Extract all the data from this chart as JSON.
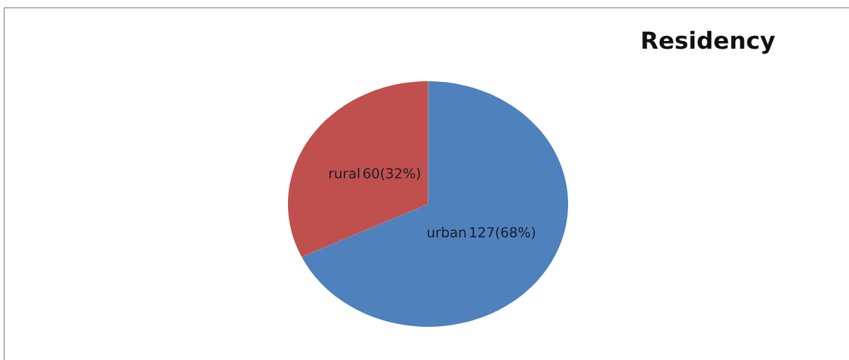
{
  "chart_data": {
    "type": "pie",
    "title": "Residency",
    "categories": [
      "urban",
      "rural"
    ],
    "values": [
      127,
      60
    ],
    "colors": [
      "#4f81bd",
      "#c0504d"
    ],
    "value_labels": [
      "127(68%)",
      "60(32%)"
    ]
  }
}
